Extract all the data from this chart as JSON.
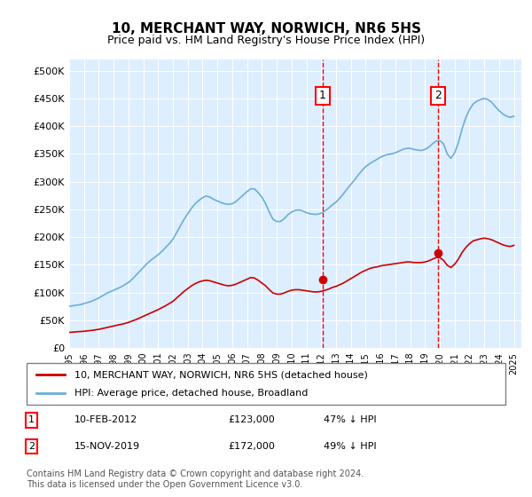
{
  "title": "10, MERCHANT WAY, NORWICH, NR6 5HS",
  "subtitle": "Price paid vs. HM Land Registry's House Price Index (HPI)",
  "ylabel_ticks": [
    "£0",
    "£50K",
    "£100K",
    "£150K",
    "£200K",
    "£250K",
    "£300K",
    "£350K",
    "£400K",
    "£450K",
    "£500K"
  ],
  "ytick_vals": [
    0,
    50000,
    100000,
    150000,
    200000,
    250000,
    300000,
    350000,
    400000,
    450000,
    500000
  ],
  "ylim": [
    0,
    520000
  ],
  "xlim_start": 1995.0,
  "xlim_end": 2025.5,
  "hpi_color": "#6baed6",
  "price_color": "#cc0000",
  "bg_color": "#ddeeff",
  "sale1_year": 2012.1,
  "sale1_price": 123000,
  "sale2_year": 2019.88,
  "sale2_price": 172000,
  "legend_label1": "10, MERCHANT WAY, NORWICH, NR6 5HS (detached house)",
  "legend_label2": "HPI: Average price, detached house, Broadland",
  "annotation1_label": "1",
  "annotation2_label": "2",
  "sale1_text": "10-FEB-2012",
  "sale1_price_text": "£123,000",
  "sale1_pct_text": "47% ↓ HPI",
  "sale2_text": "15-NOV-2019",
  "sale2_price_text": "£172,000",
  "sale2_pct_text": "49% ↓ HPI",
  "footnote": "Contains HM Land Registry data © Crown copyright and database right 2024.\nThis data is licensed under the Open Government Licence v3.0.",
  "hpi_years": [
    1995.0,
    1995.25,
    1995.5,
    1995.75,
    1996.0,
    1996.25,
    1996.5,
    1996.75,
    1997.0,
    1997.25,
    1997.5,
    1997.75,
    1998.0,
    1998.25,
    1998.5,
    1998.75,
    1999.0,
    1999.25,
    1999.5,
    1999.75,
    2000.0,
    2000.25,
    2000.5,
    2000.75,
    2001.0,
    2001.25,
    2001.5,
    2001.75,
    2002.0,
    2002.25,
    2002.5,
    2002.75,
    2003.0,
    2003.25,
    2003.5,
    2003.75,
    2004.0,
    2004.25,
    2004.5,
    2004.75,
    2005.0,
    2005.25,
    2005.5,
    2005.75,
    2006.0,
    2006.25,
    2006.5,
    2006.75,
    2007.0,
    2007.25,
    2007.5,
    2007.75,
    2008.0,
    2008.25,
    2008.5,
    2008.75,
    2009.0,
    2009.25,
    2009.5,
    2009.75,
    2010.0,
    2010.25,
    2010.5,
    2010.75,
    2011.0,
    2011.25,
    2011.5,
    2011.75,
    2012.0,
    2012.25,
    2012.5,
    2012.75,
    2013.0,
    2013.25,
    2013.5,
    2013.75,
    2014.0,
    2014.25,
    2014.5,
    2014.75,
    2015.0,
    2015.25,
    2015.5,
    2015.75,
    2016.0,
    2016.25,
    2016.5,
    2016.75,
    2017.0,
    2017.25,
    2017.5,
    2017.75,
    2018.0,
    2018.25,
    2018.5,
    2018.75,
    2019.0,
    2019.25,
    2019.5,
    2019.75,
    2020.0,
    2020.25,
    2020.5,
    2020.75,
    2021.0,
    2021.25,
    2021.5,
    2021.75,
    2022.0,
    2022.25,
    2022.5,
    2022.75,
    2023.0,
    2023.25,
    2023.5,
    2023.75,
    2024.0,
    2024.25,
    2024.5,
    2024.75,
    2025.0
  ],
  "hpi_values": [
    75000,
    76000,
    77000,
    78000,
    80000,
    82000,
    84000,
    87000,
    90000,
    94000,
    98000,
    101000,
    104000,
    107000,
    110000,
    114000,
    118000,
    124000,
    131000,
    138000,
    145000,
    152000,
    158000,
    163000,
    168000,
    174000,
    181000,
    188000,
    196000,
    208000,
    220000,
    232000,
    242000,
    252000,
    260000,
    266000,
    271000,
    274000,
    272000,
    268000,
    265000,
    262000,
    260000,
    259000,
    260000,
    264000,
    270000,
    276000,
    282000,
    287000,
    287000,
    280000,
    272000,
    260000,
    245000,
    232000,
    228000,
    228000,
    233000,
    240000,
    245000,
    248000,
    249000,
    247000,
    244000,
    242000,
    241000,
    241000,
    243000,
    247000,
    252000,
    258000,
    263000,
    270000,
    278000,
    287000,
    295000,
    303000,
    312000,
    320000,
    327000,
    332000,
    336000,
    340000,
    344000,
    347000,
    349000,
    350000,
    352000,
    355000,
    358000,
    360000,
    360000,
    358000,
    357000,
    356000,
    358000,
    362000,
    368000,
    373000,
    374000,
    368000,
    350000,
    342000,
    352000,
    370000,
    395000,
    415000,
    430000,
    440000,
    445000,
    448000,
    450000,
    448000,
    443000,
    435000,
    428000,
    422000,
    418000,
    416000,
    418000
  ],
  "price_years": [
    1995.0,
    1995.25,
    1995.5,
    1995.75,
    1996.0,
    1996.25,
    1996.5,
    1996.75,
    1997.0,
    1997.25,
    1997.5,
    1997.75,
    1998.0,
    1998.25,
    1998.5,
    1998.75,
    1999.0,
    1999.25,
    1999.5,
    1999.75,
    2000.0,
    2000.25,
    2000.5,
    2000.75,
    2001.0,
    2001.25,
    2001.5,
    2001.75,
    2002.0,
    2002.25,
    2002.5,
    2002.75,
    2003.0,
    2003.25,
    2003.5,
    2003.75,
    2004.0,
    2004.25,
    2004.5,
    2004.75,
    2005.0,
    2005.25,
    2005.5,
    2005.75,
    2006.0,
    2006.25,
    2006.5,
    2006.75,
    2007.0,
    2007.25,
    2007.5,
    2007.75,
    2008.0,
    2008.25,
    2008.5,
    2008.75,
    2009.0,
    2009.25,
    2009.5,
    2009.75,
    2010.0,
    2010.25,
    2010.5,
    2010.75,
    2011.0,
    2011.25,
    2011.5,
    2011.75,
    2012.0,
    2012.25,
    2012.5,
    2012.75,
    2013.0,
    2013.25,
    2013.5,
    2013.75,
    2014.0,
    2014.25,
    2014.5,
    2014.75,
    2015.0,
    2015.25,
    2015.5,
    2015.75,
    2016.0,
    2016.25,
    2016.5,
    2016.75,
    2017.0,
    2017.25,
    2017.5,
    2017.75,
    2018.0,
    2018.25,
    2018.5,
    2018.75,
    2019.0,
    2019.25,
    2019.5,
    2019.75,
    2020.0,
    2020.25,
    2020.5,
    2020.75,
    2021.0,
    2021.25,
    2021.5,
    2021.75,
    2022.0,
    2022.25,
    2022.5,
    2022.75,
    2023.0,
    2023.25,
    2023.5,
    2023.75,
    2024.0,
    2024.25,
    2024.5,
    2024.75,
    2025.0
  ],
  "price_values": [
    28000,
    28500,
    29000,
    29500,
    30000,
    30800,
    31500,
    32500,
    33500,
    35000,
    36500,
    38000,
    39500,
    41000,
    42500,
    44000,
    46000,
    48500,
    51000,
    54000,
    57000,
    60000,
    63000,
    66000,
    69000,
    72500,
    76000,
    80000,
    84000,
    90000,
    96000,
    102000,
    107000,
    112000,
    116000,
    119000,
    121000,
    122000,
    121000,
    119000,
    117000,
    115000,
    113000,
    112000,
    113000,
    115000,
    118000,
    121000,
    124000,
    127000,
    126000,
    122000,
    117000,
    112000,
    105000,
    99000,
    97000,
    97000,
    99000,
    102000,
    104000,
    105000,
    105000,
    104000,
    103000,
    102000,
    101000,
    101000,
    102000,
    104000,
    106000,
    109000,
    111000,
    114000,
    117000,
    121000,
    125000,
    129000,
    133000,
    137000,
    140000,
    143000,
    145000,
    146000,
    148000,
    149000,
    150000,
    151000,
    152000,
    153000,
    154000,
    155000,
    155000,
    154000,
    154000,
    154000,
    155000,
    157000,
    160000,
    163000,
    163000,
    158000,
    149000,
    145000,
    151000,
    160000,
    172000,
    181000,
    188000,
    193000,
    195000,
    197000,
    198000,
    197000,
    195000,
    192000,
    189000,
    186000,
    184000,
    183000,
    185000
  ]
}
